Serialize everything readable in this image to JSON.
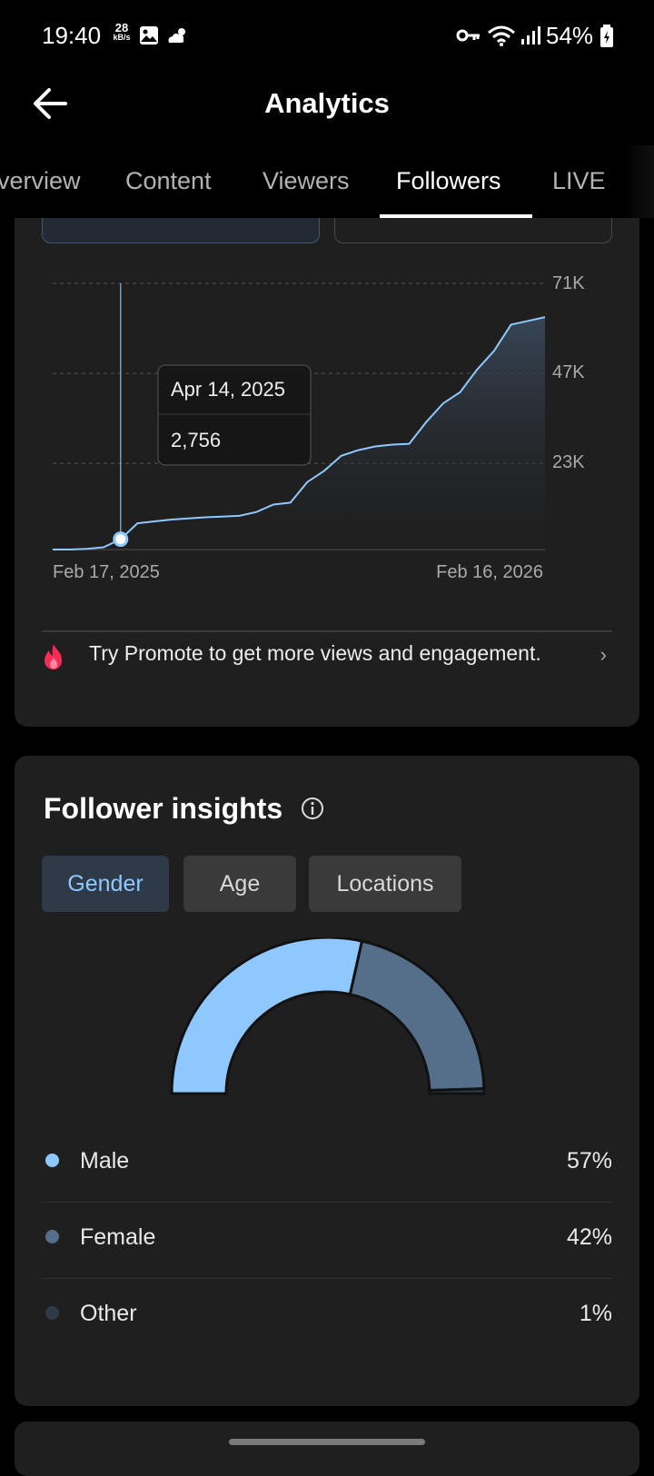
{
  "status_bar": {
    "time": "19:40",
    "speed_value": "28",
    "speed_unit": "kB/s",
    "battery": "54%"
  },
  "header": {
    "title": "Analytics",
    "back_icon": "arrow-left-icon"
  },
  "tabs": [
    {
      "label": "Overview",
      "active": false
    },
    {
      "label": "Content",
      "active": false
    },
    {
      "label": "Viewers",
      "active": false
    },
    {
      "label": "Followers",
      "active": true
    },
    {
      "label": "LIVE",
      "active": false
    }
  ],
  "chart_data": {
    "type": "area",
    "x_start_label": "Feb 17, 2025",
    "x_end_label": "Feb 16, 2026",
    "y_ticks": [
      "71K",
      "47K",
      "23K"
    ],
    "ylim": [
      0,
      71000
    ],
    "series": [
      {
        "values": [
          0,
          0,
          200,
          600,
          2756,
          7000,
          7500,
          8000,
          8300,
          8600,
          8800,
          9000,
          10000,
          12000,
          12500,
          18000,
          21000,
          25000,
          26500,
          27500,
          28000,
          28200,
          34000,
          39000,
          42000,
          48000,
          53000,
          60000,
          61000,
          62000
        ],
        "color": "#8fc8ff"
      }
    ],
    "tooltip": {
      "date": "Apr 14, 2025",
      "value": "2,756"
    },
    "grid": "dashed-horizontal"
  },
  "promo": {
    "text": "Try Promote to get more views and engagement.",
    "icon": "flame-icon"
  },
  "insights": {
    "title": "Follower insights",
    "pills": [
      {
        "label": "Gender",
        "active": true
      },
      {
        "label": "Age",
        "active": false
      },
      {
        "label": "Locations",
        "active": false
      }
    ],
    "gender_data": {
      "type": "pie",
      "categories": [
        "Male",
        "Female",
        "Other"
      ],
      "values": [
        57,
        42,
        1
      ],
      "display_values": [
        "57%",
        "42%",
        "1%"
      ],
      "colors": [
        "#8fc8ff",
        "#556f8a",
        "#2f3a48"
      ]
    }
  }
}
